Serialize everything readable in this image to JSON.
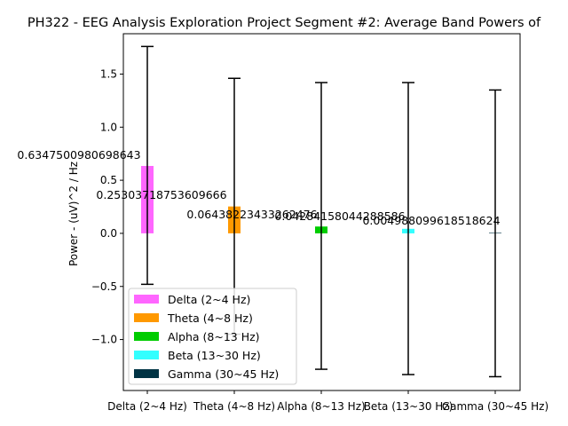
{
  "chart_data": {
    "type": "bar",
    "title": "PH322 - EEG Analysis Exploration Project Segment #2: Average Band Powers of",
    "xlabel": "",
    "ylabel": "Power - (uV)^2 / Hz",
    "ylim": [
      -1.48,
      1.88
    ],
    "yticks": [
      -1.0,
      -0.5,
      0.0,
      0.5,
      1.0,
      1.5
    ],
    "ytick_labels": [
      "−1.0",
      "−0.5",
      "0.0",
      "0.5",
      "1.0",
      "1.5"
    ],
    "grid": false,
    "legend_position": "lower-left",
    "categories": [
      "Delta (2~4 Hz)",
      "Theta (4~8 Hz)",
      "Alpha (8~13 Hz)",
      "Beta (13~30 Hz)",
      "Gamma (30~45 Hz)"
    ],
    "values": [
      0.6347500980698643,
      0.25303718753609666,
      0.06438223433262476,
      0.04284158044288586,
      0.004988099618518624
    ],
    "value_labels": [
      "0.6347500980698643",
      "0.25303718753609666",
      "0.06438223433262476",
      "0.04284158044288586",
      "0.004988099618518624"
    ],
    "error_low": [
      -0.48,
      -0.95,
      -1.28,
      -1.33,
      -1.35
    ],
    "error_high": [
      1.76,
      1.46,
      1.42,
      1.42,
      1.35
    ],
    "colors": [
      "#ff66ff",
      "#ff9900",
      "#00cc00",
      "#33ffff",
      "#003344"
    ],
    "legend": [
      "Delta (2~4 Hz)",
      "Theta (4~8 Hz)",
      "Alpha (8~13 Hz)",
      "Beta (13~30 Hz)",
      "Gamma (30~45 Hz)"
    ]
  }
}
